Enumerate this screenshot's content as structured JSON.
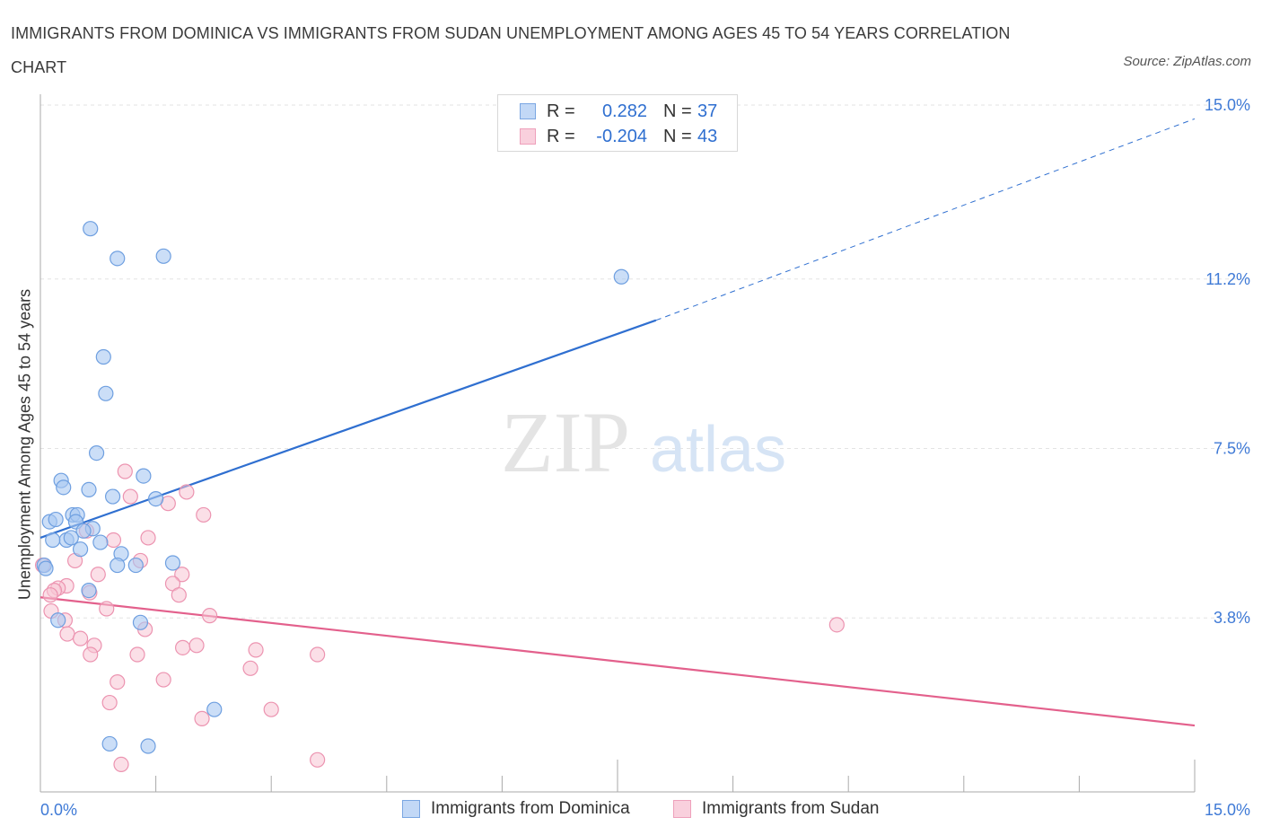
{
  "title": "IMMIGRANTS FROM DOMINICA VS IMMIGRANTS FROM SUDAN UNEMPLOYMENT AMONG AGES 45 TO 54 YEARS CORRELATION CHART",
  "source": "Source: ZipAtlas.com",
  "watermark": {
    "zip": "ZIP",
    "atlas": "atlas"
  },
  "legend_top": [
    {
      "r_label": "R =",
      "r_value": "0.282",
      "n_label": "N =",
      "n_value": "37"
    },
    {
      "r_label": "R =",
      "r_value": "-0.204",
      "n_label": "N =",
      "n_value": "43"
    }
  ],
  "colors": {
    "dominica_fill": "#a9c8f2",
    "dominica_stroke": "#6e9fe0",
    "dominica_line": "#2f6fd0",
    "sudan_fill": "#f7c4d3",
    "sudan_stroke": "#ec93b0",
    "sudan_line": "#e3608c",
    "axis_text": "#3f7ad6",
    "grid": "#e3e3e3"
  },
  "chart_data": {
    "type": "scatter",
    "ylabel": "Unemployment Among Ages 45 to 54 years",
    "xlabel": "",
    "xlim": [
      0,
      15
    ],
    "ylim": [
      0,
      15
    ],
    "x_tick_labels": [
      {
        "value": 0,
        "label": "0.0%"
      },
      {
        "value": 15,
        "label": "15.0%"
      }
    ],
    "y_tick_labels": [
      {
        "value": 3.8,
        "label": "3.8%"
      },
      {
        "value": 7.5,
        "label": "7.5%"
      },
      {
        "value": 11.2,
        "label": "11.2%"
      },
      {
        "value": 15.0,
        "label": "15.0%"
      }
    ],
    "series": [
      {
        "name": "Immigrants from Dominica",
        "r": 0.282,
        "n": 37,
        "trend": {
          "x0": 0,
          "y0": 5.55,
          "x1": 8.0,
          "y1": 10.3,
          "dashed_to_x": 15,
          "dashed_to_y": 14.7
        },
        "points": [
          [
            0.65,
            12.3
          ],
          [
            1.0,
            11.65
          ],
          [
            1.6,
            11.7
          ],
          [
            7.55,
            11.25
          ],
          [
            0.82,
            9.5
          ],
          [
            0.85,
            8.7
          ],
          [
            0.73,
            7.4
          ],
          [
            0.27,
            6.8
          ],
          [
            0.3,
            6.65
          ],
          [
            1.34,
            6.9
          ],
          [
            0.63,
            6.6
          ],
          [
            0.94,
            6.45
          ],
          [
            1.5,
            6.4
          ],
          [
            0.12,
            5.9
          ],
          [
            0.2,
            5.95
          ],
          [
            0.42,
            6.05
          ],
          [
            0.48,
            6.05
          ],
          [
            0.46,
            5.9
          ],
          [
            0.68,
            5.75
          ],
          [
            0.56,
            5.7
          ],
          [
            0.34,
            5.5
          ],
          [
            0.4,
            5.55
          ],
          [
            0.16,
            5.5
          ],
          [
            0.78,
            5.45
          ],
          [
            0.52,
            5.3
          ],
          [
            1.05,
            5.2
          ],
          [
            0.05,
            4.95
          ],
          [
            0.07,
            4.88
          ],
          [
            1.0,
            4.95
          ],
          [
            1.24,
            4.95
          ],
          [
            1.72,
            5.0
          ],
          [
            0.63,
            4.4
          ],
          [
            0.23,
            3.75
          ],
          [
            1.3,
            3.7
          ],
          [
            2.26,
            1.8
          ],
          [
            0.9,
            1.05
          ],
          [
            1.4,
            1.0
          ]
        ]
      },
      {
        "name": "Immigrants from Sudan",
        "r": -0.204,
        "n": 43,
        "trend": {
          "x0": 0,
          "y0": 4.25,
          "x1": 15,
          "y1": 1.45
        },
        "points": [
          [
            1.1,
            7.0
          ],
          [
            1.17,
            6.45
          ],
          [
            1.9,
            6.55
          ],
          [
            1.66,
            6.3
          ],
          [
            2.12,
            6.05
          ],
          [
            0.6,
            5.7
          ],
          [
            0.95,
            5.5
          ],
          [
            1.4,
            5.55
          ],
          [
            1.3,
            5.05
          ],
          [
            0.45,
            5.05
          ],
          [
            0.03,
            4.95
          ],
          [
            0.75,
            4.75
          ],
          [
            1.84,
            4.75
          ],
          [
            1.72,
            4.55
          ],
          [
            1.8,
            4.3
          ],
          [
            0.34,
            4.5
          ],
          [
            0.23,
            4.45
          ],
          [
            0.18,
            4.4
          ],
          [
            0.64,
            4.35
          ],
          [
            0.13,
            4.3
          ],
          [
            0.86,
            4.0
          ],
          [
            0.14,
            3.95
          ],
          [
            2.2,
            3.85
          ],
          [
            0.32,
            3.75
          ],
          [
            1.36,
            3.55
          ],
          [
            0.35,
            3.45
          ],
          [
            0.52,
            3.35
          ],
          [
            0.7,
            3.2
          ],
          [
            1.85,
            3.15
          ],
          [
            2.03,
            3.2
          ],
          [
            2.8,
            3.1
          ],
          [
            0.65,
            3.0
          ],
          [
            1.26,
            3.0
          ],
          [
            3.6,
            3.0
          ],
          [
            2.73,
            2.7
          ],
          [
            10.35,
            3.65
          ],
          [
            1.0,
            2.4
          ],
          [
            1.6,
            2.45
          ],
          [
            0.9,
            1.95
          ],
          [
            3.0,
            1.8
          ],
          [
            2.1,
            1.6
          ],
          [
            1.05,
            0.6
          ],
          [
            3.6,
            0.7
          ]
        ]
      }
    ]
  }
}
